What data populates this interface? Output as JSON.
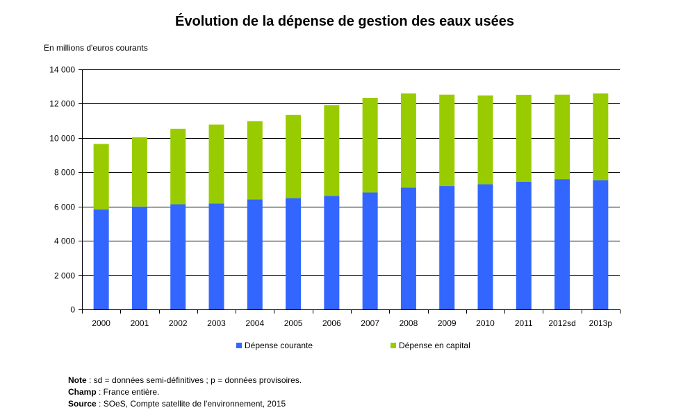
{
  "chart_data": {
    "type": "bar",
    "stacked": true,
    "title": "Évolution de la dépense de gestion des eaux usées",
    "ylabel": "En millions d'euros courants",
    "xlabel": "",
    "ylim": [
      0,
      14000
    ],
    "yticks": [
      0,
      2000,
      4000,
      6000,
      8000,
      10000,
      12000,
      14000
    ],
    "ytick_labels": [
      "0",
      "2 000",
      "4 000",
      "6 000",
      "8 000",
      "10 000",
      "12 000",
      "14 000"
    ],
    "grid": true,
    "legend_position": "bottom",
    "categories": [
      "2000",
      "2001",
      "2002",
      "2003",
      "2004",
      "2005",
      "2006",
      "2007",
      "2008",
      "2009",
      "2010",
      "2011",
      "2012sd",
      "2013p"
    ],
    "series": [
      {
        "name": "Dépense courante",
        "color": "#3366ff",
        "values": [
          5830,
          6000,
          6130,
          6180,
          6420,
          6490,
          6620,
          6820,
          7100,
          7200,
          7300,
          7450,
          7600,
          7530
        ]
      },
      {
        "name": "Dépense en capital",
        "color": "#99cc00",
        "values": [
          3820,
          4040,
          4400,
          4600,
          4560,
          4850,
          5300,
          5520,
          5500,
          5320,
          5180,
          5060,
          4920,
          5070
        ]
      }
    ]
  },
  "notes": [
    {
      "label": "Note",
      "text": " : sd = données semi-définitives ; p = données provisoires."
    },
    {
      "label": "Champ",
      "text": " : France entière."
    },
    {
      "label": "Source",
      "text": " : SOeS, Compte satellite de l'environnement, 2015"
    }
  ]
}
